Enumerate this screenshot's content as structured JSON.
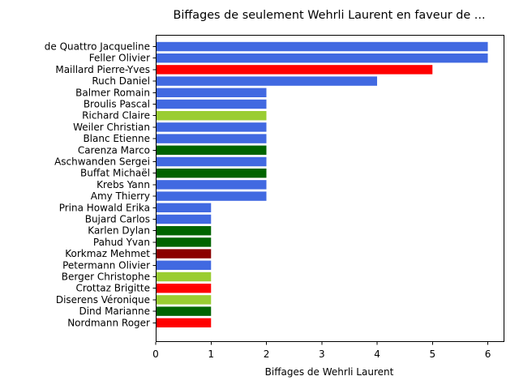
{
  "chart_data": {
    "type": "bar",
    "orientation": "horizontal",
    "title": "Biffages de seulement Wehrli Laurent en faveur de ...",
    "xlabel": "Biffages de Wehrli Laurent",
    "ylabel": "",
    "xlim": [
      0,
      6.3
    ],
    "x_ticks": [
      0,
      1,
      2,
      3,
      4,
      5,
      6
    ],
    "grid": false,
    "categories": [
      "de Quattro Jacqueline",
      "Feller Olivier",
      "Maillard Pierre-Yves",
      "Ruch Daniel",
      "Balmer Romain",
      "Broulis Pascal",
      "Richard Claire",
      "Weiler Christian",
      "Blanc Etienne",
      "Carenza Marco",
      "Aschwanden Sergei",
      "Buffat Michaël",
      "Krebs Yann",
      "Amy Thierry",
      "Prina Howald Erika",
      "Bujard Carlos",
      "Karlen Dylan",
      "Pahud Yvan",
      "Korkmaz Mehmet",
      "Petermann Olivier",
      "Berger Christophe",
      "Crottaz Brigitte",
      "Diserens Véronique",
      "Dind Marianne",
      "Nordmann Roger"
    ],
    "values": [
      6,
      6,
      5,
      4,
      2,
      2,
      2,
      2,
      2,
      2,
      2,
      2,
      2,
      2,
      1,
      1,
      1,
      1,
      1,
      1,
      1,
      1,
      1,
      1,
      1
    ],
    "colors": [
      "#4169e1",
      "#4169e1",
      "#ff0000",
      "#4169e1",
      "#4169e1",
      "#4169e1",
      "#9acd32",
      "#4169e1",
      "#4169e1",
      "#006400",
      "#4169e1",
      "#006400",
      "#4169e1",
      "#4169e1",
      "#4169e1",
      "#4169e1",
      "#006400",
      "#006400",
      "#8b0000",
      "#4169e1",
      "#9acd32",
      "#ff0000",
      "#9acd32",
      "#006400",
      "#ff0000"
    ]
  }
}
